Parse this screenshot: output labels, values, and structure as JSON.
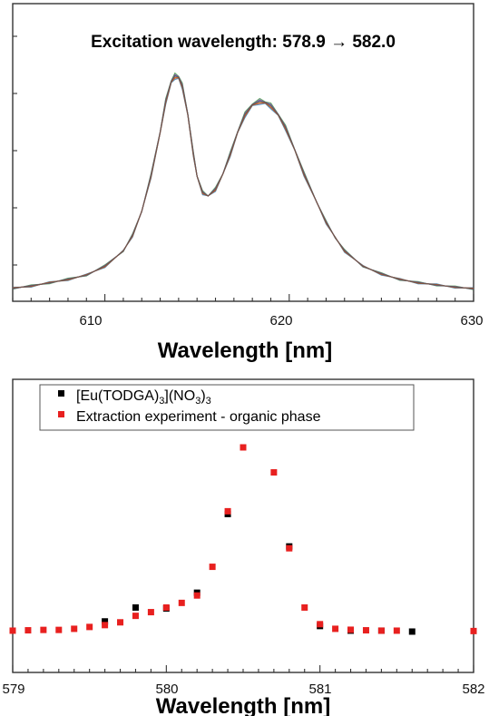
{
  "chart_data": [
    {
      "type": "line",
      "title": "Excitation wavelength: 578.9 → 582.0",
      "xlabel": "Wavelength [nm]",
      "ylabel": "",
      "xlim": [
        605,
        630
      ],
      "ylim": [
        0,
        1.05
      ],
      "xticks": [
        610,
        620,
        630
      ],
      "xtick_labels": [
        "610",
        "620",
        "630"
      ],
      "grid": false,
      "series_colors": [
        "#2b7a8c",
        "#6a5acd",
        "#c0392b",
        "#3a8f3a",
        "#1f77b4",
        "#8e44ad",
        "#d35400",
        "#555555"
      ],
      "x": [
        605,
        606,
        607,
        608,
        609,
        610,
        611,
        611.5,
        612,
        612.5,
        613,
        613.3,
        613.6,
        613.8,
        614,
        614.2,
        614.5,
        614.8,
        615,
        615.3,
        615.6,
        616,
        616.4,
        616.8,
        617.2,
        617.6,
        618,
        618.4,
        618.7,
        619,
        619.4,
        619.8,
        620.3,
        620.8,
        621.5,
        622,
        622.5,
        623,
        624,
        625,
        626,
        627,
        628,
        629,
        630
      ],
      "y": [
        0.01,
        0.02,
        0.035,
        0.05,
        0.07,
        0.11,
        0.18,
        0.25,
        0.36,
        0.52,
        0.72,
        0.86,
        0.95,
        0.975,
        0.97,
        0.93,
        0.8,
        0.62,
        0.52,
        0.445,
        0.43,
        0.46,
        0.53,
        0.62,
        0.72,
        0.8,
        0.845,
        0.86,
        0.855,
        0.84,
        0.8,
        0.74,
        0.64,
        0.53,
        0.4,
        0.31,
        0.24,
        0.18,
        0.11,
        0.075,
        0.05,
        0.035,
        0.025,
        0.015,
        0.008
      ]
    },
    {
      "type": "scatter",
      "title": "",
      "xlabel": "Wavelength [nm]",
      "ylabel": "",
      "xlim": [
        579,
        582
      ],
      "ylim": [
        0,
        1.05
      ],
      "xticks": [
        579,
        580,
        581,
        582
      ],
      "xtick_labels": [
        "579",
        "580",
        "581",
        "582"
      ],
      "grid": false,
      "legend": "top-left",
      "series": [
        {
          "name": "[Eu(TODGA)3](NO3)3",
          "color": "#000000",
          "x": [
            579.6,
            579.8,
            580.0,
            580.2,
            580.4,
            580.8,
            581.0,
            581.2,
            581.4,
            581.6
          ],
          "y": [
            0.06,
            0.135,
            0.13,
            0.215,
            0.64,
            0.465,
            0.035,
            0.01,
            0.01,
            0.005
          ]
        },
        {
          "name": "Extraction experiment - organic phase",
          "color": "#e8201f",
          "x": [
            579.0,
            579.1,
            579.2,
            579.3,
            579.4,
            579.5,
            579.6,
            579.7,
            579.8,
            579.9,
            580.0,
            580.1,
            580.2,
            580.3,
            580.4,
            580.5,
            580.7,
            580.8,
            580.9,
            581.0,
            581.1,
            581.2,
            581.3,
            581.4,
            581.5,
            582.0
          ],
          "y": [
            0.01,
            0.012,
            0.014,
            0.014,
            0.02,
            0.03,
            0.04,
            0.055,
            0.09,
            0.11,
            0.135,
            0.16,
            0.2,
            0.355,
            0.655,
            1.0,
            0.865,
            0.455,
            0.135,
            0.045,
            0.02,
            0.015,
            0.012,
            0.01,
            0.01,
            0.008
          ]
        }
      ]
    }
  ],
  "panel1": {
    "title": "Excitation wavelength: 578.9 → 582.0",
    "xlabel": "Wavelength [nm]",
    "tick_labels": [
      "610",
      "620",
      "630"
    ]
  },
  "panel2": {
    "xlabel": "Wavelength [nm]",
    "tick_labels": [
      "579",
      "580",
      "581",
      "582"
    ],
    "legend": {
      "item1_base": "[Eu(TODGA)",
      "item1_sub1": "3",
      "item1_mid": "](NO",
      "item1_sub2": "3",
      "item1_mid2": ")",
      "item1_sub3": "3",
      "item2": "Extraction experiment - organic phase"
    }
  }
}
